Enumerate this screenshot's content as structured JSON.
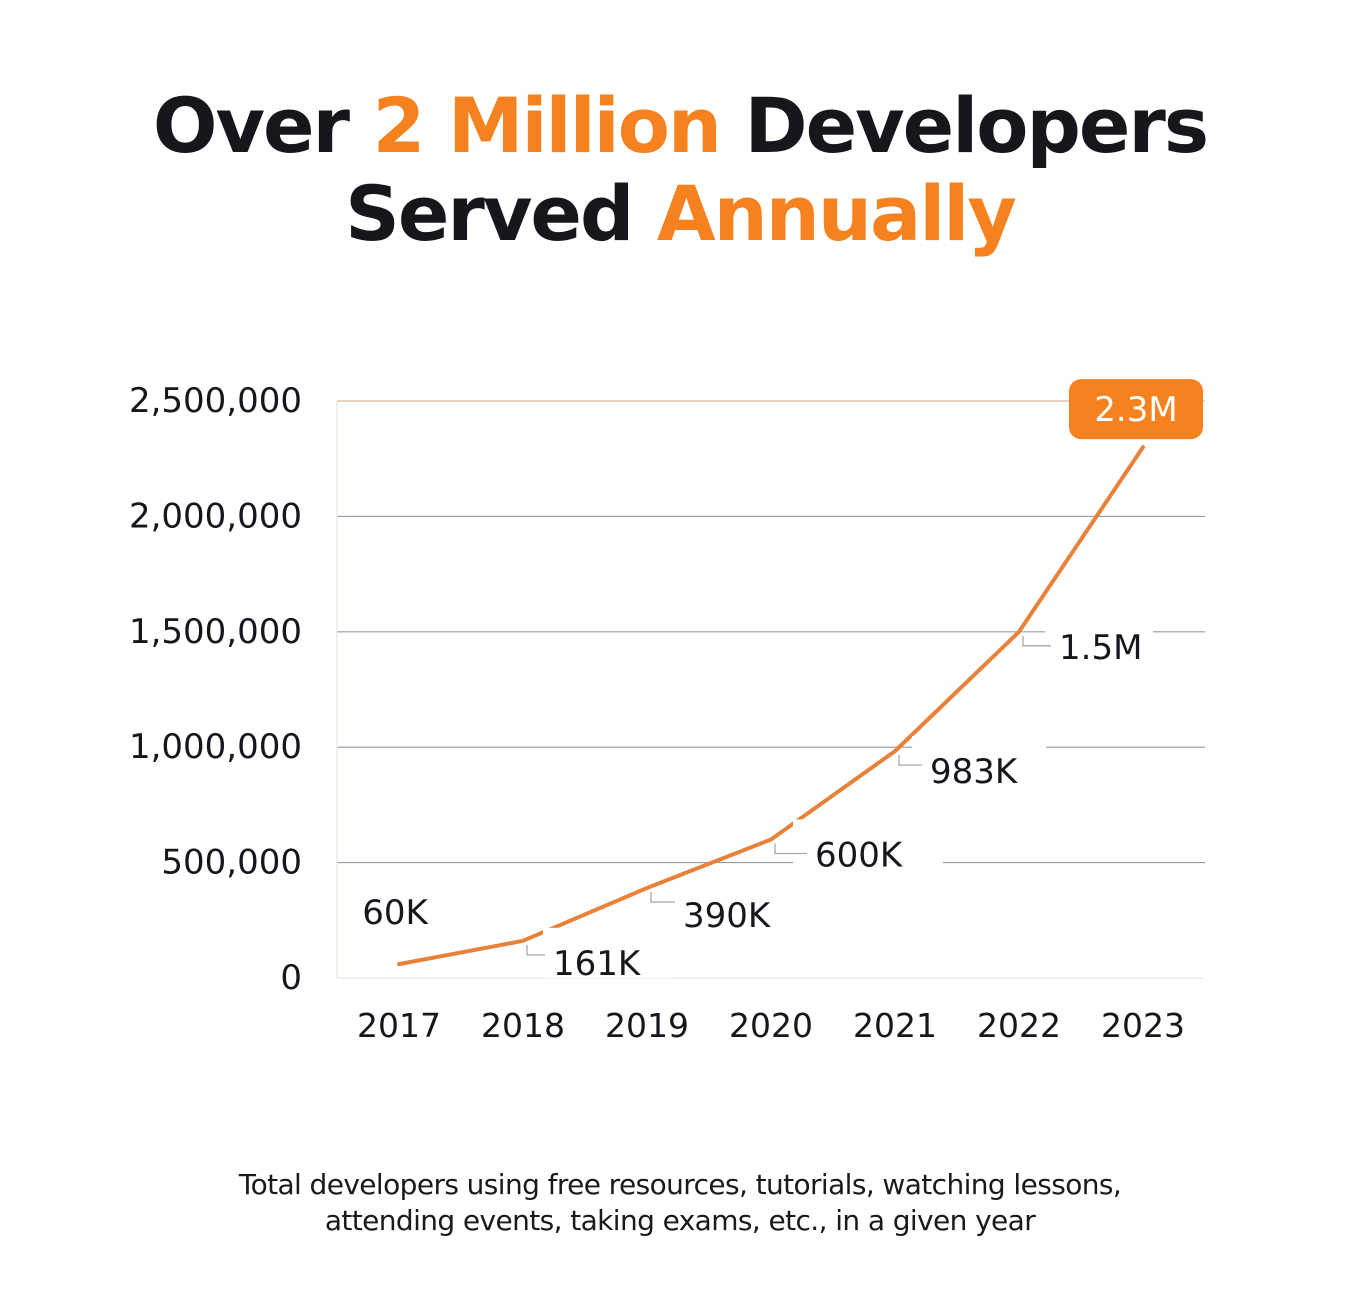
{
  "title": {
    "line1_pre": "Over",
    "line1_accent": "2 Million",
    "line1_post": "Developers",
    "line2_pre": "Served",
    "line2_accent": "Annually"
  },
  "caption": {
    "line1": "Total developers using free resources, tutorials, watching lessons,",
    "line2": "attending events, taking exams, etc., in a given year"
  },
  "colors": {
    "accent": "#f5821f",
    "line": "#e8823a",
    "text": "#15171c",
    "grid": "#9a9a9a",
    "top_grid": "#d9b99a"
  },
  "chart_data": {
    "type": "line",
    "title": "",
    "xlabel": "",
    "ylabel": "",
    "categories": [
      "2017",
      "2018",
      "2019",
      "2020",
      "2021",
      "2022",
      "2023"
    ],
    "values": [
      60000,
      161000,
      390000,
      600000,
      983000,
      1500000,
      2300000
    ],
    "data_labels": [
      "60K",
      "161K",
      "390K",
      "600K",
      "983K",
      "1.5M",
      "2.3M"
    ],
    "highlighted_label": "2.3M",
    "ylim": [
      0,
      2500000
    ],
    "y_ticks": [
      0,
      500000,
      1000000,
      1500000,
      2000000,
      2500000
    ],
    "y_tick_labels": [
      "0",
      "500,000",
      "1,000,000",
      "1,500,000",
      "2,000,000",
      "2,500,000"
    ],
    "grid": true,
    "legend": "none"
  }
}
